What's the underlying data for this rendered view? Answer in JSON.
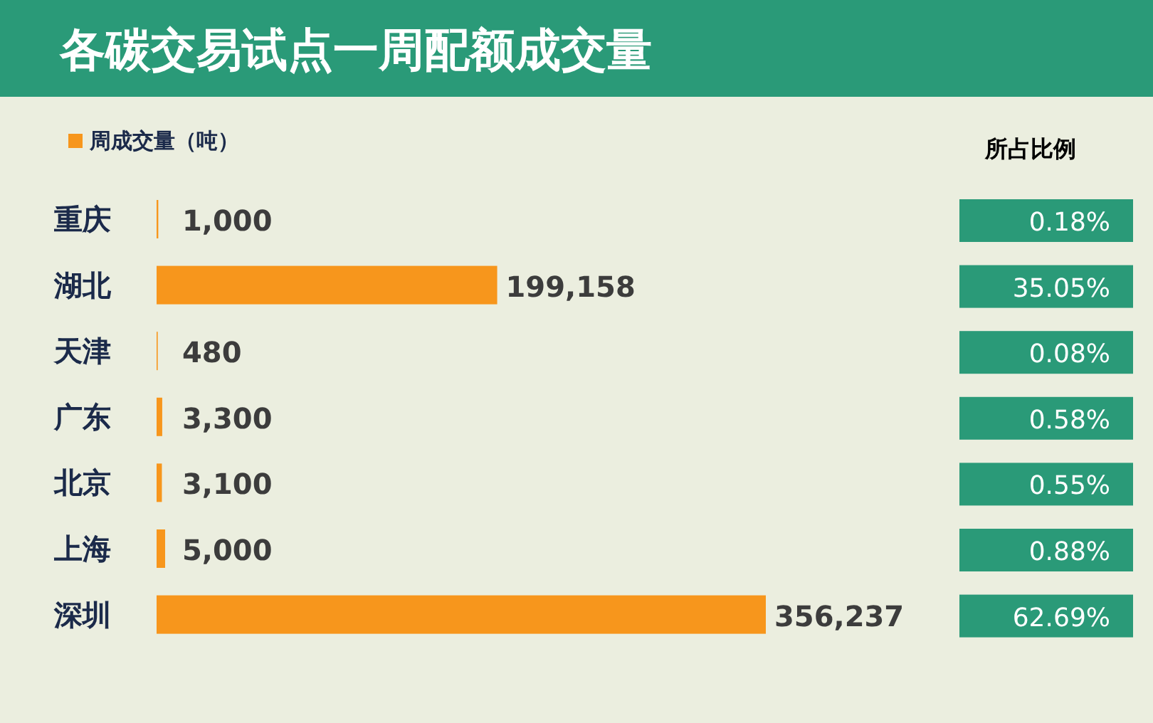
{
  "chart_data": {
    "type": "bar",
    "orientation": "horizontal",
    "title": "各碳交易试点一周配额成交量",
    "categories": [
      "重庆",
      "湖北",
      "天津",
      "广东",
      "北京",
      "上海",
      "深圳"
    ],
    "series": [
      {
        "name": "周成交量（吨）",
        "color": "#f7961c",
        "values": [
          1000,
          199158,
          480,
          3300,
          3100,
          5000,
          356237
        ],
        "value_labels": [
          "1,000",
          "199,158",
          "480",
          "3,300",
          "3,100",
          "5,000",
          "356,237"
        ]
      }
    ],
    "legend": "top left",
    "annotations": [
      "所占比例",
      "0.18%",
      "35.05%",
      "0.08%",
      "0.58%",
      "0.55%",
      "0.88%",
      "62.69%"
    ]
  }
}
